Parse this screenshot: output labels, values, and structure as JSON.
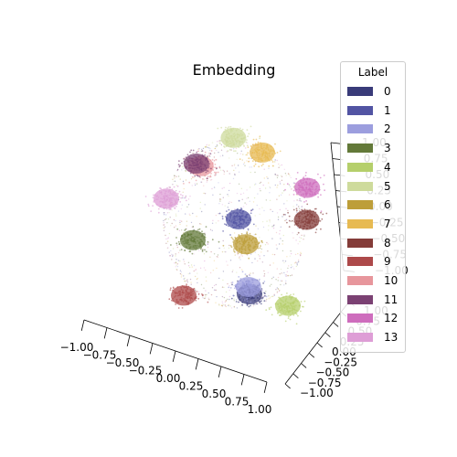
{
  "chart_data": {
    "type": "scatter",
    "projection": "3d",
    "title": "Embedding",
    "xlabel": "",
    "ylabel": "",
    "zlabel": "",
    "xlim": [
      -1.0,
      1.0
    ],
    "ylim": [
      -1.0,
      1.0
    ],
    "zlim": [
      -1.0,
      1.0
    ],
    "grid": false,
    "x_ticks": [
      "−1.00",
      "−0.75",
      "−0.50",
      "−0.25",
      "0.00",
      "0.25",
      "0.50",
      "0.75",
      "1.00"
    ],
    "y_ticks": [
      "−1.00",
      "−0.75",
      "−0.50",
      "−0.25",
      "0.00",
      "0.25",
      "0.50",
      "0.75",
      "1.00"
    ],
    "z_ticks": [
      "1.00",
      "0.75",
      "0.50",
      "0.25",
      "0.00",
      "−0.25",
      "−0.50",
      "−0.75",
      "−1.00"
    ],
    "legend": {
      "title": "Label",
      "placement": "upper-right",
      "entries": [
        {
          "label": "0",
          "color": "#393b79"
        },
        {
          "label": "1",
          "color": "#5254a3"
        },
        {
          "label": "2",
          "color": "#9c9ede"
        },
        {
          "label": "3",
          "color": "#637939"
        },
        {
          "label": "4",
          "color": "#b5cf6b"
        },
        {
          "label": "5",
          "color": "#cedb9c"
        },
        {
          "label": "6",
          "color": "#bd9e39"
        },
        {
          "label": "7",
          "color": "#e7ba52"
        },
        {
          "label": "8",
          "color": "#843c39"
        },
        {
          "label": "9",
          "color": "#ad494a"
        },
        {
          "label": "10",
          "color": "#e7969c"
        },
        {
          "label": "11",
          "color": "#7b4173"
        },
        {
          "label": "12",
          "color": "#ce6dbd"
        },
        {
          "label": "13",
          "color": "#de9ed6"
        }
      ]
    },
    "series": [
      {
        "label": "0",
        "x": 0.45,
        "y": -0.55,
        "z": -0.55
      },
      {
        "label": "1",
        "x": 0.05,
        "y": 0.05,
        "z": 0.05
      },
      {
        "label": "2",
        "x": 0.55,
        "y": -0.85,
        "z": -0.25
      },
      {
        "label": "3",
        "x": -0.45,
        "y": -0.45,
        "z": -0.1
      },
      {
        "label": "4",
        "x": 0.8,
        "y": 0.05,
        "z": -0.95
      },
      {
        "label": "5",
        "x": -0.3,
        "y": 0.75,
        "z": 0.7
      },
      {
        "label": "6",
        "x": 0.2,
        "y": -0.05,
        "z": -0.2
      },
      {
        "label": "7",
        "x": 0.1,
        "y": 0.85,
        "z": 0.55
      },
      {
        "label": "8",
        "x": 0.95,
        "y": 0.4,
        "z": 0.1
      },
      {
        "label": "9",
        "x": -0.55,
        "y": -0.55,
        "z": -0.85
      },
      {
        "label": "10",
        "x": -0.6,
        "y": 0.25,
        "z": 0.5
      },
      {
        "label": "11",
        "x": -0.65,
        "y": 0.2,
        "z": 0.55
      },
      {
        "label": "12",
        "x": 0.9,
        "y": 0.55,
        "z": 0.45
      },
      {
        "label": "13",
        "x": -0.95,
        "y": -0.2,
        "z": 0.2
      }
    ]
  }
}
